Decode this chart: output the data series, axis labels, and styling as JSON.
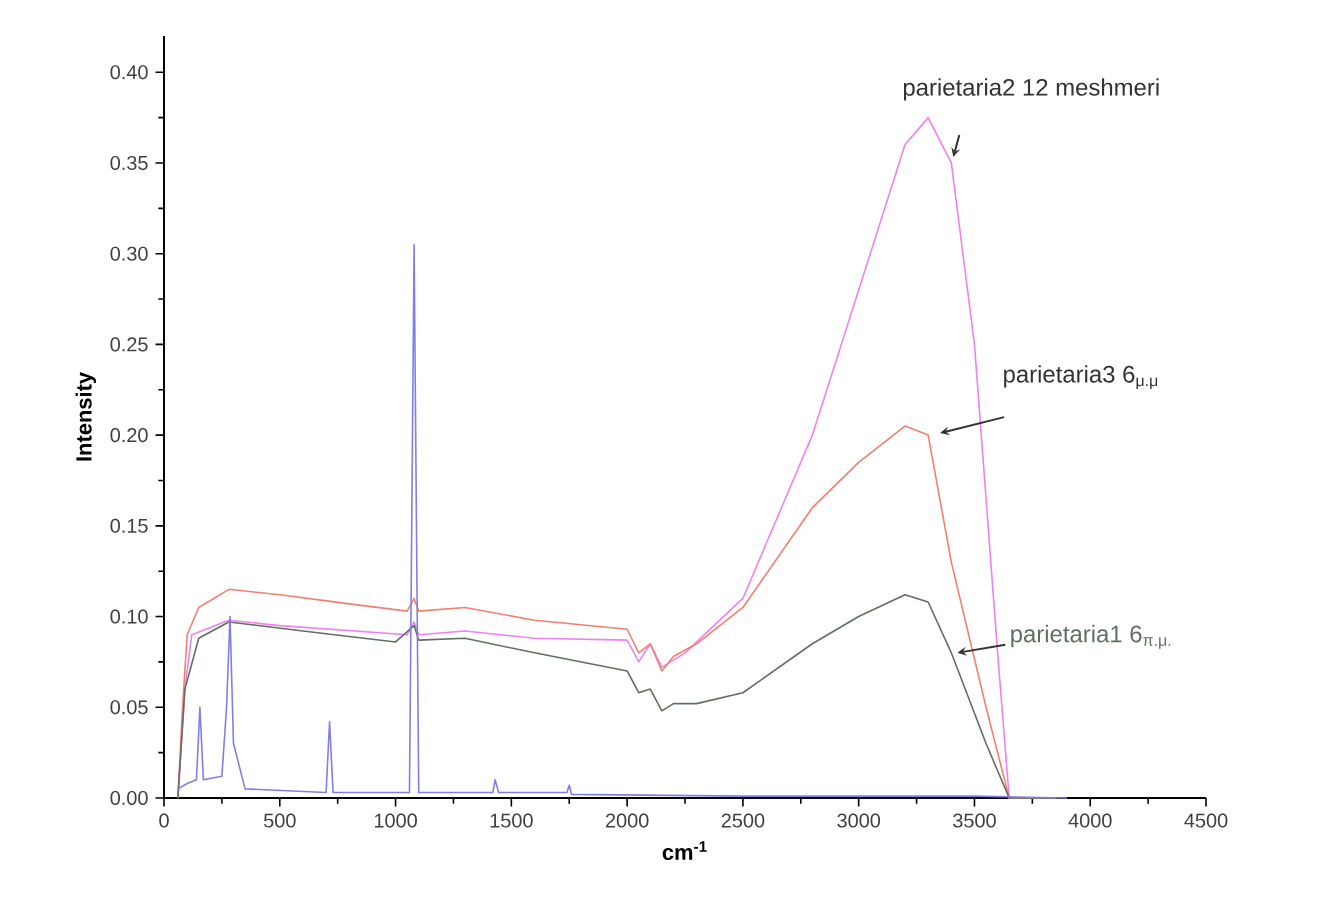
{
  "chart_data": {
    "type": "line",
    "xlabel": "cm$^{-1}$",
    "ylabel": "Intensity",
    "xlim": [
      0,
      4500
    ],
    "ylim": [
      0,
      0.42
    ],
    "xticks": [
      0,
      500,
      1000,
      1500,
      2000,
      2500,
      3000,
      3500,
      4000,
      4500
    ],
    "yticks": [
      {
        "value": 0,
        "label": "0.00"
      },
      {
        "value": 0.05,
        "label": "0.05"
      },
      {
        "value": 0.1,
        "label": "0.10"
      },
      {
        "value": 0.15,
        "label": "0.15"
      },
      {
        "value": 0.2,
        "label": "0.20"
      },
      {
        "value": 0.25,
        "label": "0.25"
      },
      {
        "value": 0.3,
        "label": "0.30"
      },
      {
        "value": 0.35,
        "label": "0.35"
      },
      {
        "value": 0.4,
        "label": "0.40"
      }
    ],
    "marker": "none",
    "line_style": "solid",
    "series": [
      {
        "name": "parietaria2 12 meshmeri",
        "color": "#ee82ee",
        "x": [
          60,
          90,
          120,
          280,
          500,
          1050,
          1080,
          1100,
          1300,
          1600,
          2000,
          2050,
          2100,
          2150,
          2250,
          2500,
          2800,
          3000,
          3200,
          3300,
          3400,
          3500,
          3600,
          3650,
          3850
        ],
        "values": [
          0,
          0.06,
          0.09,
          0.098,
          0.095,
          0.09,
          0.097,
          0.09,
          0.092,
          0.088,
          0.087,
          0.075,
          0.085,
          0.072,
          0.08,
          0.11,
          0.2,
          0.28,
          0.36,
          0.375,
          0.35,
          0.25,
          0.08,
          0,
          0
        ]
      },
      {
        "name": "parietaria3 6$_{μ.μ}$",
        "color": "#f08070",
        "x": [
          60,
          80,
          100,
          150,
          280,
          500,
          800,
          1050,
          1080,
          1100,
          1300,
          1600,
          2000,
          2050,
          2100,
          2150,
          2200,
          2300,
          2500,
          2800,
          3000,
          3200,
          3300,
          3400,
          3550,
          3650,
          3800
        ],
        "values": [
          0,
          0.05,
          0.09,
          0.105,
          0.115,
          0.112,
          0.107,
          0.103,
          0.11,
          0.103,
          0.105,
          0.098,
          0.093,
          0.08,
          0.085,
          0.07,
          0.078,
          0.085,
          0.105,
          0.16,
          0.185,
          0.205,
          0.2,
          0.13,
          0.05,
          0,
          0
        ]
      },
      {
        "name": "parietaria1 6$_{π.μ.}$",
        "color": "#607060",
        "x": [
          60,
          90,
          150,
          280,
          600,
          1000,
          1080,
          1100,
          1300,
          1600,
          2000,
          2050,
          2100,
          2150,
          2200,
          2300,
          2500,
          2800,
          3000,
          3200,
          3300,
          3400,
          3550,
          3650,
          3850
        ],
        "values": [
          0,
          0.06,
          0.088,
          0.097,
          0.092,
          0.086,
          0.095,
          0.087,
          0.088,
          0.08,
          0.07,
          0.058,
          0.06,
          0.048,
          0.052,
          0.052,
          0.058,
          0.085,
          0.1,
          0.112,
          0.108,
          0.08,
          0.03,
          0,
          0
        ]
      },
      {
        "color": "#8080e0",
        "x": [
          60,
          100,
          140,
          155,
          170,
          250,
          270,
          285,
          300,
          350,
          700,
          715,
          730,
          1060,
          1080,
          1100,
          1420,
          1430,
          1445,
          1740,
          1750,
          1760,
          2500,
          3500,
          3900
        ],
        "values": [
          0.005,
          0.008,
          0.01,
          0.05,
          0.01,
          0.012,
          0.05,
          0.1,
          0.03,
          0.005,
          0.003,
          0.042,
          0.003,
          0.003,
          0.305,
          0.003,
          0.003,
          0.01,
          0.003,
          0.003,
          0.007,
          0.002,
          0.001,
          0.001,
          0
        ]
      }
    ]
  }
}
